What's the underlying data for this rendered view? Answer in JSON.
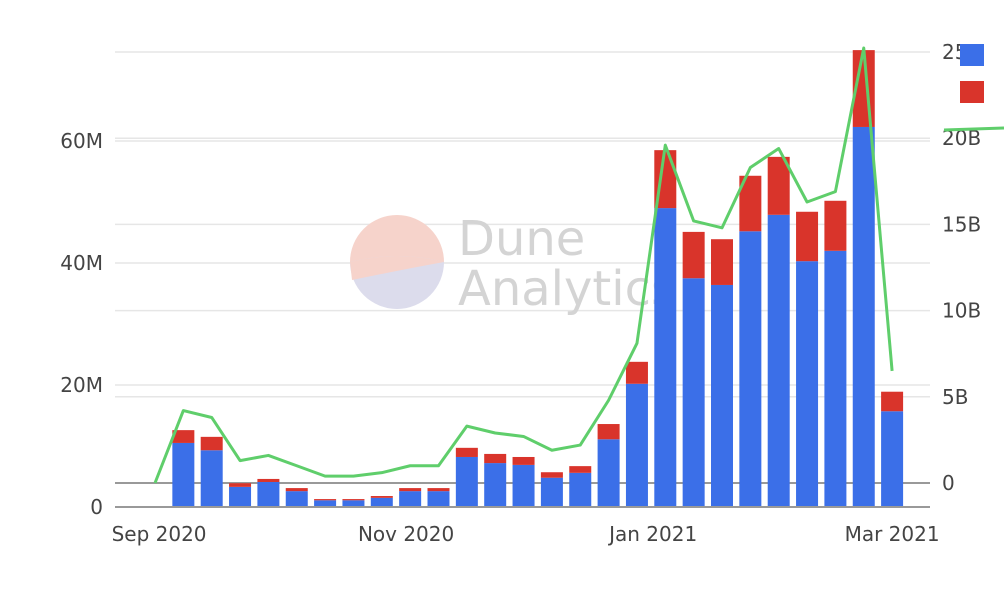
{
  "chart_data": {
    "type": "bar",
    "stacked": true,
    "watermark": "Dune Analytics",
    "x": [
      "2020-08-31",
      "2020-09-07",
      "2020-09-14",
      "2020-09-21",
      "2020-09-28",
      "2020-10-05",
      "2020-10-12",
      "2020-10-19",
      "2020-10-26",
      "2020-11-02",
      "2020-11-09",
      "2020-11-16",
      "2020-11-23",
      "2020-11-30",
      "2020-12-07",
      "2020-12-14",
      "2020-12-21",
      "2020-12-28",
      "2021-01-04",
      "2021-01-11",
      "2021-01-18",
      "2021-01-25",
      "2021-02-01",
      "2021-02-08",
      "2021-02-15",
      "2021-02-22",
      "2021-03-01"
    ],
    "x_ticks": [
      {
        "date": "2020-09-01",
        "label": "Sep 2020"
      },
      {
        "date": "2020-11-01",
        "label": "Nov 2020"
      },
      {
        "date": "2021-01-01",
        "label": "Jan 2021"
      },
      {
        "date": "2021-03-01",
        "label": "Mar 2021"
      }
    ],
    "y_left": {
      "ylim": [
        0,
        75000000
      ],
      "ticks": [
        {
          "v": 0,
          "label": "0"
        },
        {
          "v": 20000000,
          "label": "20M"
        },
        {
          "v": 40000000,
          "label": "40M"
        },
        {
          "v": 60000000,
          "label": "60M"
        }
      ]
    },
    "y_right": {
      "ylim": [
        -1400000000,
        25000000000
      ],
      "ticks": [
        {
          "v": 0,
          "label": "0"
        },
        {
          "v": 5000000000,
          "label": "5B"
        },
        {
          "v": 10000000000,
          "label": "10B"
        },
        {
          "v": 15000000000,
          "label": "15B"
        },
        {
          "v": 20000000000,
          "label": "20B"
        },
        {
          "v": 25000000000,
          "label": "25B"
        }
      ]
    },
    "series": [
      {
        "type": "bar",
        "axis": "left",
        "color": "#3b6fe8",
        "values": [
          0,
          10500000,
          9300000,
          3300000,
          4100000,
          2600000,
          1100000,
          1100000,
          1500000,
          2600000,
          2600000,
          8200000,
          7200000,
          6900000,
          4800000,
          5600000,
          11100000,
          20200000,
          49000000,
          37500000,
          36400000,
          45200000,
          47900000,
          40300000,
          42000000,
          62300000,
          15700000
        ]
      },
      {
        "type": "bar",
        "axis": "left",
        "color": "#d9342b",
        "values": [
          0,
          2100000,
          2200000,
          600000,
          500000,
          500000,
          200000,
          200000,
          300000,
          500000,
          500000,
          1500000,
          1500000,
          1300000,
          900000,
          1100000,
          2500000,
          3600000,
          9500000,
          7600000,
          7500000,
          9100000,
          9500000,
          8100000,
          8200000,
          12600000,
          3200000
        ]
      },
      {
        "type": "line",
        "axis": "right",
        "color": "#5fce6b",
        "values": [
          0,
          4200000000,
          3800000000,
          1300000000,
          1600000000,
          1000000000,
          400000000,
          400000000,
          600000000,
          1000000000,
          1000000000,
          3300000000,
          2900000000,
          2700000000,
          1900000000,
          2200000000,
          4800000000,
          8100000000,
          19600000000,
          15200000000,
          14800000000,
          18300000000,
          19400000000,
          16300000000,
          16900000000,
          25300000000,
          6500000000
        ]
      }
    ],
    "legend": {
      "placement": "top-right",
      "colors": [
        "#3b6fe8",
        "#d9342b",
        "#5fce6b"
      ]
    },
    "grid": true
  }
}
